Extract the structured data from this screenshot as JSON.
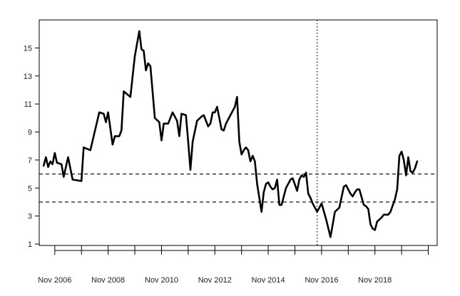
{
  "chart_data": {
    "type": "line",
    "title": "",
    "xlabel": "",
    "ylabel": "",
    "ylim": [
      1,
      17
    ],
    "y_ticks": [
      1,
      3,
      5,
      7,
      9,
      11,
      13,
      15
    ],
    "x_tick_labels": [
      "Nov 2006",
      "Nov 2008",
      "Nov 2010",
      "Nov 2012",
      "Nov 2014",
      "Nov 2016",
      "Nov 2018"
    ],
    "x_tick_count": 15,
    "x_tick_unit_years": 1,
    "x_tick_start": "2006-11",
    "x_label_every": 2,
    "xlim": [
      "2006-04",
      "2021-03"
    ],
    "grid": false,
    "reference_lines": [
      {
        "axis": "y",
        "value": 6,
        "style": "dashed"
      },
      {
        "axis": "y",
        "value": 4,
        "style": "dashed"
      },
      {
        "axis": "x",
        "value": "2016-09",
        "style": "dotted"
      }
    ],
    "series": [
      {
        "color": "#000000",
        "points": [
          [
            "2006-06",
            6.6
          ],
          [
            "2006-07",
            7.2
          ],
          [
            "2006-08",
            6.5
          ],
          [
            "2006-09",
            6.9
          ],
          [
            "2006-10",
            6.7
          ],
          [
            "2006-11",
            7.5
          ],
          [
            "2006-12",
            6.8
          ],
          [
            "2007-02",
            6.7
          ],
          [
            "2007-03",
            5.8
          ],
          [
            "2007-05",
            7.2
          ],
          [
            "2007-07",
            5.6
          ],
          [
            "2007-11",
            5.5
          ],
          [
            "2007-12",
            7.9
          ],
          [
            "2008-03",
            7.7
          ],
          [
            "2008-07",
            10.4
          ],
          [
            "2008-09",
            10.3
          ],
          [
            "2008-10",
            9.7
          ],
          [
            "2008-11",
            10.4
          ],
          [
            "2009-01",
            8.1
          ],
          [
            "2009-02",
            8.7
          ],
          [
            "2009-04",
            8.7
          ],
          [
            "2009-05",
            9.1
          ],
          [
            "2009-06",
            11.9
          ],
          [
            "2009-09",
            11.5
          ],
          [
            "2009-11",
            14.4
          ],
          [
            "2010-01",
            16.2
          ],
          [
            "2010-02",
            14.9
          ],
          [
            "2010-03",
            14.8
          ],
          [
            "2010-04",
            13.4
          ],
          [
            "2010-05",
            13.9
          ],
          [
            "2010-06",
            13.7
          ],
          [
            "2010-08",
            10.0
          ],
          [
            "2010-10",
            9.7
          ],
          [
            "2010-11",
            8.4
          ],
          [
            "2010-12",
            9.6
          ],
          [
            "2011-02",
            9.6
          ],
          [
            "2011-04",
            10.4
          ],
          [
            "2011-06",
            9.8
          ],
          [
            "2011-07",
            8.7
          ],
          [
            "2011-08",
            10.3
          ],
          [
            "2011-10",
            10.2
          ],
          [
            "2011-11",
            8.3
          ],
          [
            "2011-12",
            6.3
          ],
          [
            "2012-01",
            8.3
          ],
          [
            "2012-03",
            9.8
          ],
          [
            "2012-05",
            10.1
          ],
          [
            "2012-06",
            10.2
          ],
          [
            "2012-08",
            9.4
          ],
          [
            "2012-09",
            9.6
          ],
          [
            "2012-10",
            10.4
          ],
          [
            "2012-11",
            10.4
          ],
          [
            "2012-12",
            10.8
          ],
          [
            "2013-01",
            10.0
          ],
          [
            "2013-02",
            9.2
          ],
          [
            "2013-03",
            9.1
          ],
          [
            "2013-04",
            9.6
          ],
          [
            "2013-06",
            10.2
          ],
          [
            "2013-08",
            10.8
          ],
          [
            "2013-09",
            11.5
          ],
          [
            "2013-10",
            8.3
          ],
          [
            "2013-11",
            7.4
          ],
          [
            "2013-12",
            7.7
          ],
          [
            "2014-01",
            7.9
          ],
          [
            "2014-02",
            7.7
          ],
          [
            "2014-03",
            6.9
          ],
          [
            "2014-04",
            7.3
          ],
          [
            "2014-05",
            6.9
          ],
          [
            "2014-06",
            5.3
          ],
          [
            "2014-08",
            3.3
          ],
          [
            "2014-09",
            4.7
          ],
          [
            "2014-10",
            5.3
          ],
          [
            "2014-11",
            5.4
          ],
          [
            "2014-12",
            5.1
          ],
          [
            "2015-01",
            4.9
          ],
          [
            "2015-02",
            5.0
          ],
          [
            "2015-03",
            5.6
          ],
          [
            "2015-04",
            3.8
          ],
          [
            "2015-05",
            3.8
          ],
          [
            "2015-07",
            5.0
          ],
          [
            "2015-09",
            5.6
          ],
          [
            "2015-10",
            5.7
          ],
          [
            "2015-12",
            4.8
          ],
          [
            "2016-01",
            5.6
          ],
          [
            "2016-02",
            5.9
          ],
          [
            "2016-03",
            5.8
          ],
          [
            "2016-04",
            6.1
          ],
          [
            "2016-05",
            4.6
          ],
          [
            "2016-06",
            4.3
          ],
          [
            "2016-07",
            3.9
          ],
          [
            "2016-09",
            3.3
          ],
          [
            "2016-11",
            3.9
          ],
          [
            "2017-01",
            2.8
          ],
          [
            "2017-03",
            1.5
          ],
          [
            "2017-05",
            3.3
          ],
          [
            "2017-07",
            3.6
          ],
          [
            "2017-09",
            5.1
          ],
          [
            "2017-10",
            5.2
          ],
          [
            "2017-12",
            4.6
          ],
          [
            "2018-01",
            4.4
          ],
          [
            "2018-02",
            4.7
          ],
          [
            "2018-03",
            4.9
          ],
          [
            "2018-04",
            4.9
          ],
          [
            "2018-06",
            3.8
          ],
          [
            "2018-07",
            3.7
          ],
          [
            "2018-08",
            3.5
          ],
          [
            "2018-09",
            2.4
          ],
          [
            "2018-10",
            2.1
          ],
          [
            "2018-11",
            2.0
          ],
          [
            "2018-12",
            2.6
          ],
          [
            "2019-02",
            2.9
          ],
          [
            "2019-03",
            3.1
          ],
          [
            "2019-05",
            3.1
          ],
          [
            "2019-06",
            3.3
          ],
          [
            "2019-08",
            4.2
          ],
          [
            "2019-09",
            4.9
          ],
          [
            "2019-10",
            7.3
          ],
          [
            "2019-11",
            7.6
          ],
          [
            "2019-12",
            7.0
          ],
          [
            "2020-01",
            5.9
          ],
          [
            "2020-02",
            7.2
          ],
          [
            "2020-03",
            6.2
          ],
          [
            "2020-04",
            6.1
          ],
          [
            "2020-05",
            6.4
          ],
          [
            "2020-06",
            6.9
          ]
        ]
      }
    ]
  }
}
